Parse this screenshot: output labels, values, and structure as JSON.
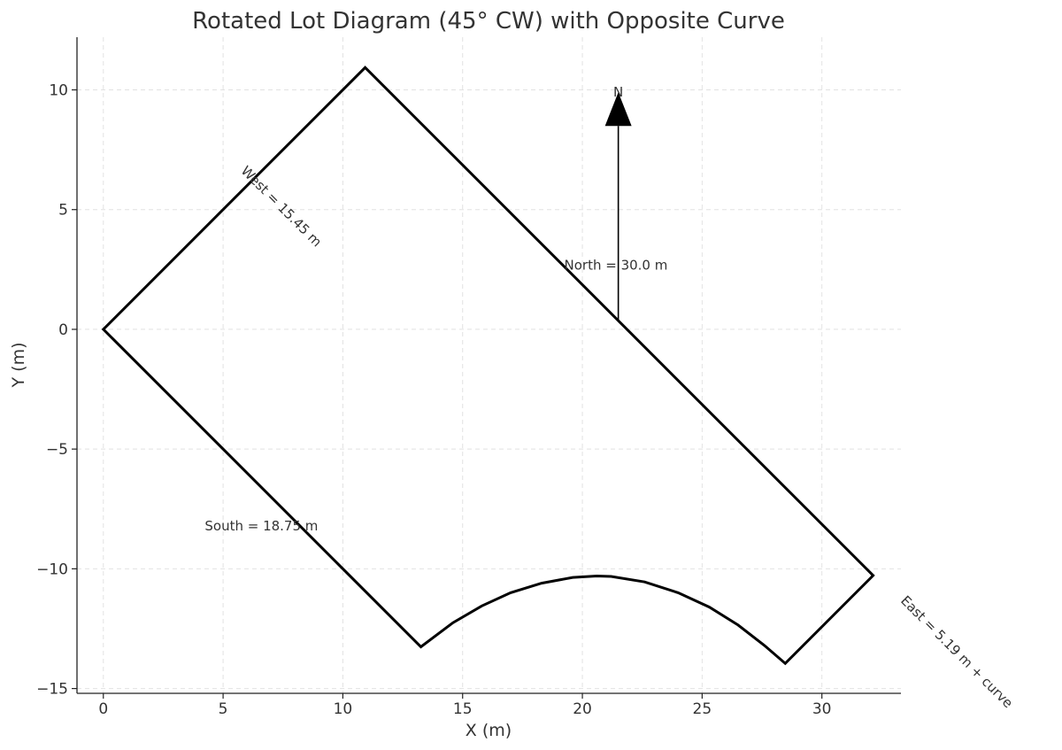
{
  "chart_data": {
    "type": "line",
    "title": "Rotated Lot Diagram (45° CW) with Opposite Curve",
    "xlabel": "X (m)",
    "ylabel": "Y (m)",
    "xlim": [
      -1.1,
      33.3
    ],
    "ylim": [
      -15.2,
      12.2
    ],
    "xticks": [
      0,
      5,
      10,
      15,
      20,
      25,
      30
    ],
    "yticks": [
      -15,
      -10,
      -5,
      0,
      5,
      10
    ],
    "grid": true,
    "series": [
      {
        "color": "#000000",
        "points": [
          [
            0,
            0
          ],
          [
            10.93,
            10.93
          ],
          [
            32.14,
            -10.28
          ],
          [
            28.47,
            -13.95
          ],
          [
            27.6,
            -13.2
          ],
          [
            26.5,
            -12.35
          ],
          [
            25.3,
            -11.6
          ],
          [
            24.0,
            -11.0
          ],
          [
            22.6,
            -10.55
          ],
          [
            21.2,
            -10.32
          ],
          [
            20.6,
            -10.3
          ],
          [
            19.6,
            -10.36
          ],
          [
            18.3,
            -10.6
          ],
          [
            17.0,
            -11.0
          ],
          [
            15.8,
            -11.55
          ],
          [
            14.6,
            -12.25
          ],
          [
            13.26,
            -13.26
          ],
          [
            0,
            0
          ]
        ]
      }
    ],
    "north_arrow": {
      "label": "N",
      "x": 21.5,
      "y_from": 0.4,
      "y_to": 9.9
    },
    "annotations": [
      {
        "text": "West = 15.45 m",
        "x": 7.3,
        "y": 5.0,
        "rotation": 45
      },
      {
        "text": "North = 30.0 m",
        "x": 21.4,
        "y": 2.5,
        "rotation": 0
      },
      {
        "text": "South = 18.75 m",
        "x": 6.6,
        "y": -8.4,
        "rotation": 0
      },
      {
        "text": "East = 5.19 m + curve",
        "x": 35.5,
        "y": -13.6,
        "rotation": 45
      }
    ]
  }
}
